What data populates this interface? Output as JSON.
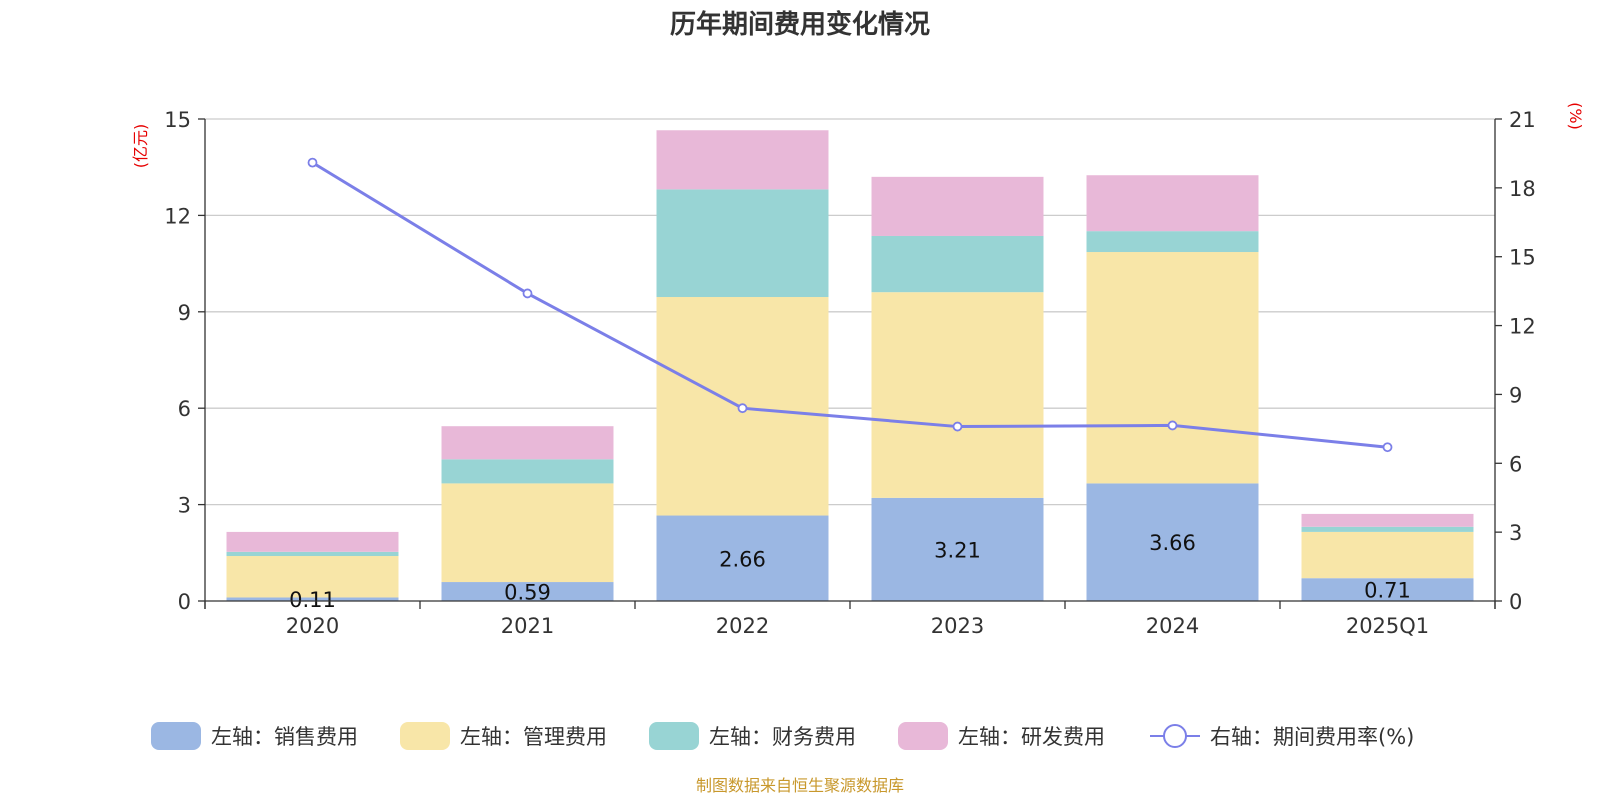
{
  "chart_data": {
    "type": "bar",
    "title": "历年期间费用变化情况",
    "categories": [
      "2020",
      "2021",
      "2022",
      "2023",
      "2024",
      "2025Q1"
    ],
    "left_axis": {
      "unit_label": "(亿元)",
      "ylim": [
        0,
        15
      ],
      "ticks": [
        0,
        3,
        6,
        9,
        12,
        15
      ]
    },
    "right_axis": {
      "unit_label": "(%)",
      "ylim": [
        0,
        21
      ],
      "ticks": [
        0,
        3,
        6,
        9,
        12,
        15,
        18,
        21
      ]
    },
    "grid": true,
    "legend_position": "bottom",
    "series": [
      {
        "name": "左轴：销售费用",
        "type": "bar",
        "axis": "left",
        "color": "#9bb7e3",
        "values": [
          0.11,
          0.59,
          2.66,
          3.21,
          3.66,
          0.71
        ],
        "labels": [
          "0.11",
          "0.59",
          "2.66",
          "3.21",
          "3.66",
          "0.71"
        ]
      },
      {
        "name": "左轴：管理费用",
        "type": "bar",
        "axis": "left",
        "color": "#f8e6a8",
        "values": [
          1.29,
          3.07,
          6.8,
          6.4,
          7.2,
          1.44
        ]
      },
      {
        "name": "左轴：财务费用",
        "type": "bar",
        "axis": "left",
        "color": "#98d4d4",
        "values": [
          0.13,
          0.75,
          3.35,
          1.75,
          0.65,
          0.16
        ]
      },
      {
        "name": "左轴：研发费用",
        "type": "bar",
        "axis": "left",
        "color": "#e8b8d8",
        "values": [
          0.62,
          1.03,
          1.84,
          1.84,
          1.74,
          0.4
        ]
      },
      {
        "name": "右轴：期间费用率(%)",
        "type": "line",
        "axis": "right",
        "color": "#7b7fe8",
        "values": [
          19.1,
          13.4,
          8.4,
          7.6,
          7.65,
          6.7
        ]
      }
    ],
    "source": "制图数据来自恒生聚源数据库"
  }
}
